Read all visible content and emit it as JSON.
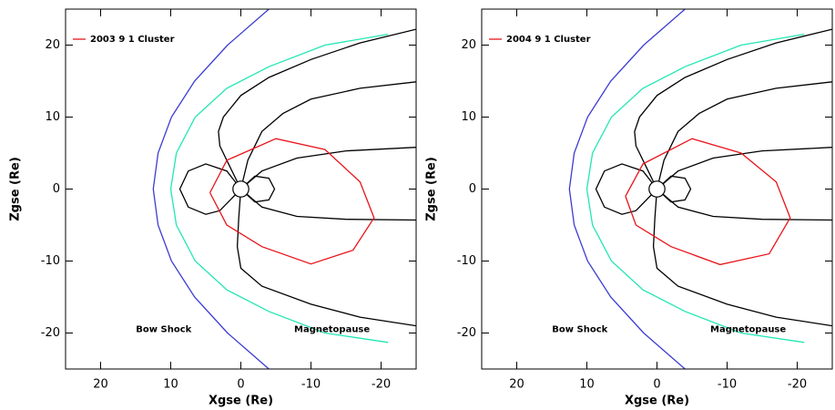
{
  "chart_data": [
    {
      "type": "line",
      "xlabel": "Xgse (Re)",
      "ylabel": "Zgse (Re)",
      "xlim": [
        25,
        -25
      ],
      "ylim": [
        -25,
        25
      ],
      "xticks": [
        20,
        10,
        0,
        -10,
        -20
      ],
      "yticks": [
        -20,
        -10,
        0,
        10,
        20
      ],
      "legend": "upper left",
      "series": [
        {
          "name": "Bow Shock",
          "color": "#3c3cd2",
          "x": [
            -4,
            1.9,
            6.6,
            9.9,
            11.8,
            12.5,
            11.8,
            9.9,
            6.6,
            1.9,
            -4
          ],
          "values": [
            25,
            20,
            15,
            10,
            5,
            0,
            -5,
            -10,
            -15,
            -20,
            -25
          ]
        },
        {
          "name": "Magnetopause",
          "color": "#22e6b4",
          "x": [
            -21,
            -12,
            -4,
            2,
            6.5,
            9.2,
            10,
            9.2,
            6.5,
            2,
            -4,
            -12,
            -21
          ],
          "values": [
            21.5,
            20,
            17,
            14,
            10,
            5,
            0,
            -5,
            -10,
            -14,
            -17,
            -20,
            -21.3
          ]
        },
        {
          "color": "#000000",
          "x": [
            0,
            1.5,
            3,
            3.2,
            2.5,
            0,
            -4,
            -10,
            -17,
            -25
          ],
          "values": [
            0,
            3,
            6,
            8,
            10,
            13,
            15.5,
            18,
            20.3,
            22.2
          ]
        },
        {
          "color": "#000000",
          "x": [
            0,
            -1,
            -3,
            -6,
            -10,
            -17,
            -25
          ],
          "values": [
            0,
            4,
            8,
            10.5,
            12.5,
            14,
            14.9
          ]
        },
        {
          "color": "#000000",
          "x": [
            0,
            -3,
            -8,
            -15,
            -25
          ],
          "values": [
            0,
            2.5,
            4.3,
            5.3,
            5.8
          ]
        },
        {
          "color": "#000000",
          "x": [
            0,
            -3,
            -8,
            -15,
            -25
          ],
          "values": [
            0,
            -2.5,
            -3.8,
            -4.2,
            -4.3
          ]
        },
        {
          "color": "#000000",
          "x": [
            0,
            0.3,
            0.5,
            0,
            -3,
            -10,
            -17,
            -25
          ],
          "values": [
            0,
            -4,
            -8,
            -11,
            -13.5,
            -16,
            -17.8,
            -19
          ]
        },
        {
          "color": "#000000",
          "x": [
            0,
            2,
            5,
            7.5,
            8.7,
            7.5,
            5,
            3,
            0
          ],
          "values": [
            0,
            2.5,
            3.5,
            2.5,
            0,
            -2.5,
            -3.5,
            -3,
            0
          ]
        },
        {
          "color": "#000000",
          "x": [
            0,
            -2,
            -4,
            -4.8,
            -4,
            -2,
            0
          ],
          "values": [
            0,
            1.8,
            1.5,
            0,
            -1.5,
            -1.8,
            0
          ]
        },
        {
          "name": "2003 9 1 Cluster",
          "color": "#e8141b",
          "x": [
            4.4,
            2,
            -5,
            -12,
            -17,
            -19,
            -16,
            -10,
            -3,
            2,
            4.4
          ],
          "values": [
            -0.5,
            4,
            7,
            5.5,
            1,
            -4,
            -8.5,
            -10.4,
            -8,
            -5,
            -0.5
          ]
        }
      ]
    },
    {
      "type": "line",
      "xlabel": "Xgse (Re)",
      "ylabel": "Zgse (Re)",
      "xlim": [
        25,
        -25
      ],
      "ylim": [
        -25,
        25
      ],
      "xticks": [
        20,
        10,
        0,
        -10,
        -20
      ],
      "yticks": [
        -20,
        -10,
        0,
        10,
        20
      ],
      "legend": "upper left",
      "series": [
        {
          "name": "Bow Shock",
          "color": "#3c3cd2",
          "x": [
            -4,
            1.9,
            6.6,
            9.9,
            11.8,
            12.5,
            11.8,
            9.9,
            6.6,
            1.9,
            -4
          ],
          "values": [
            25,
            20,
            15,
            10,
            5,
            0,
            -5,
            -10,
            -15,
            -20,
            -25
          ]
        },
        {
          "name": "Magnetopause",
          "color": "#22e6b4",
          "x": [
            -21,
            -12,
            -4,
            2,
            6.5,
            9.2,
            10,
            9.2,
            6.5,
            2,
            -4,
            -12,
            -21
          ],
          "values": [
            21.5,
            20,
            17,
            14,
            10,
            5,
            0,
            -5,
            -10,
            -14,
            -17,
            -20,
            -21.3
          ]
        },
        {
          "color": "#000000",
          "x": [
            0,
            1.5,
            3,
            3.2,
            2.5,
            0,
            -4,
            -10,
            -17,
            -25
          ],
          "values": [
            0,
            3,
            6,
            8,
            10,
            13,
            15.5,
            18,
            20.3,
            22.2
          ]
        },
        {
          "color": "#000000",
          "x": [
            0,
            -1,
            -3,
            -6,
            -10,
            -17,
            -25
          ],
          "values": [
            0,
            4,
            8,
            10.5,
            12.5,
            14,
            14.9
          ]
        },
        {
          "color": "#000000",
          "x": [
            0,
            -3,
            -8,
            -15,
            -25
          ],
          "values": [
            0,
            2.5,
            4.3,
            5.3,
            5.8
          ]
        },
        {
          "color": "#000000",
          "x": [
            0,
            -3,
            -8,
            -15,
            -25
          ],
          "values": [
            0,
            -2.5,
            -3.8,
            -4.2,
            -4.3
          ]
        },
        {
          "color": "#000000",
          "x": [
            0,
            0.3,
            0.5,
            0,
            -3,
            -10,
            -17,
            -25
          ],
          "values": [
            0,
            -4,
            -8,
            -11,
            -13.5,
            -16,
            -17.8,
            -19
          ]
        },
        {
          "color": "#000000",
          "x": [
            0,
            2,
            5,
            7.5,
            8.7,
            7.5,
            5,
            3,
            0
          ],
          "values": [
            0,
            2.5,
            3.5,
            2.5,
            0,
            -2.5,
            -3.5,
            -3,
            0
          ]
        },
        {
          "color": "#000000",
          "x": [
            0,
            -2,
            -4,
            -4.8,
            -4,
            -2,
            0
          ],
          "values": [
            0,
            1.8,
            1.5,
            0,
            -1.5,
            -1.8,
            0
          ]
        },
        {
          "name": "2004 9 1 Cluster",
          "color": "#e8141b",
          "x": [
            4.5,
            2,
            -5,
            -12,
            -17,
            -19,
            -16,
            -9,
            -2,
            3,
            4.5
          ],
          "values": [
            -1,
            3.5,
            7,
            5,
            1,
            -4,
            -9,
            -10.5,
            -8,
            -5,
            -1
          ]
        }
      ]
    }
  ]
}
